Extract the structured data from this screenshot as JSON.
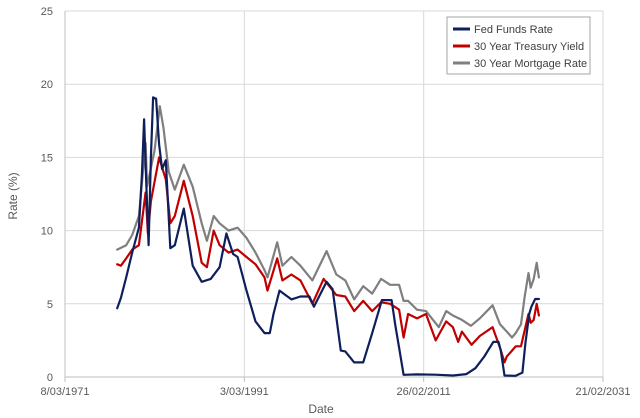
{
  "chart_data": {
    "type": "line",
    "xlabel": "Date",
    "ylabel": "Rate (%)",
    "ylim": [
      0,
      25
    ],
    "yticks": [
      0,
      5,
      10,
      15,
      20,
      25
    ],
    "xlim": [
      "1971-03-08",
      "2031-02-21"
    ],
    "xtick_labels": [
      "8/03/1971",
      "3/03/1991",
      "26/02/2011",
      "21/02/2031"
    ],
    "grid": "vertical and horizontal",
    "legend_position": "top-right",
    "series": [
      {
        "name": "30 Year Mortgage Rate",
        "color": "#7f7f7f",
        "points": [
          [
            "1977-01",
            8.7
          ],
          [
            "1978-01",
            9.0
          ],
          [
            "1978-09",
            9.7
          ],
          [
            "1979-06",
            11.0
          ],
          [
            "1980-03",
            16.0
          ],
          [
            "1980-05",
            13.0
          ],
          [
            "1980-09",
            14.0
          ],
          [
            "1981-03",
            15.5
          ],
          [
            "1981-10",
            18.5
          ],
          [
            "1982-03",
            17.0
          ],
          [
            "1982-10",
            14.0
          ],
          [
            "1983-06",
            12.8
          ],
          [
            "1984-06",
            14.5
          ],
          [
            "1985-06",
            13.0
          ],
          [
            "1986-06",
            10.5
          ],
          [
            "1987-01",
            9.3
          ],
          [
            "1987-10",
            11.0
          ],
          [
            "1988-06",
            10.5
          ],
          [
            "1989-06",
            10.0
          ],
          [
            "1990-06",
            10.2
          ],
          [
            "1991-06",
            9.5
          ],
          [
            "1992-06",
            8.5
          ],
          [
            "1993-06",
            7.3
          ],
          [
            "1993-10",
            6.8
          ],
          [
            "1994-11",
            9.2
          ],
          [
            "1995-06",
            7.6
          ],
          [
            "1996-06",
            8.2
          ],
          [
            "1997-06",
            7.6
          ],
          [
            "1998-10",
            6.6
          ],
          [
            "2000-05",
            8.6
          ],
          [
            "2001-06",
            7.0
          ],
          [
            "2002-06",
            6.6
          ],
          [
            "2003-06",
            5.3
          ],
          [
            "2004-06",
            6.2
          ],
          [
            "2005-06",
            5.7
          ],
          [
            "2006-06",
            6.7
          ],
          [
            "2007-06",
            6.3
          ],
          [
            "2008-06",
            6.3
          ],
          [
            "2008-12",
            5.2
          ],
          [
            "2009-06",
            5.2
          ],
          [
            "2010-06",
            4.6
          ],
          [
            "2011-06",
            4.5
          ],
          [
            "2012-11",
            3.4
          ],
          [
            "2013-09",
            4.5
          ],
          [
            "2014-06",
            4.2
          ],
          [
            "2015-06",
            3.9
          ],
          [
            "2016-06",
            3.5
          ],
          [
            "2017-06",
            4.0
          ],
          [
            "2018-11",
            4.9
          ],
          [
            "2019-09",
            3.6
          ],
          [
            "2020-06",
            3.1
          ],
          [
            "2021-01",
            2.7
          ],
          [
            "2021-06",
            3.0
          ],
          [
            "2022-01",
            3.6
          ],
          [
            "2022-06",
            5.5
          ],
          [
            "2022-11",
            7.1
          ],
          [
            "2023-02",
            6.1
          ],
          [
            "2023-06",
            6.7
          ],
          [
            "2023-10",
            7.8
          ],
          [
            "2024-01",
            6.8
          ]
        ]
      },
      {
        "name": "30 Year Treasury Yield",
        "color": "#c00000",
        "points": [
          [
            "1977-01",
            7.7
          ],
          [
            "1977-06",
            7.6
          ],
          [
            "1978-01",
            8.1
          ],
          [
            "1978-09",
            8.7
          ],
          [
            "1979-06",
            9.0
          ],
          [
            "1980-03",
            12.6
          ],
          [
            "1980-06",
            9.8
          ],
          [
            "1980-10",
            12.0
          ],
          [
            "1981-09",
            15.0
          ],
          [
            "1982-06",
            13.5
          ],
          [
            "1982-12",
            10.5
          ],
          [
            "1983-06",
            11.0
          ],
          [
            "1984-06",
            13.4
          ],
          [
            "1985-06",
            11.0
          ],
          [
            "1986-06",
            7.8
          ],
          [
            "1987-01",
            7.5
          ],
          [
            "1987-10",
            10.0
          ],
          [
            "1988-06",
            9.0
          ],
          [
            "1989-06",
            8.5
          ],
          [
            "1990-06",
            8.7
          ],
          [
            "1991-06",
            8.2
          ],
          [
            "1992-06",
            7.7
          ],
          [
            "1993-06",
            6.8
          ],
          [
            "1993-10",
            5.9
          ],
          [
            "1994-11",
            8.1
          ],
          [
            "1995-06",
            6.6
          ],
          [
            "1996-06",
            7.0
          ],
          [
            "1997-06",
            6.6
          ],
          [
            "1998-10",
            5.0
          ],
          [
            "2000-01",
            6.7
          ],
          [
            "2001-06",
            5.6
          ],
          [
            "2002-06",
            5.5
          ],
          [
            "2003-06",
            4.5
          ],
          [
            "2004-06",
            5.2
          ],
          [
            "2005-06",
            4.5
          ],
          [
            "2006-06",
            5.1
          ],
          [
            "2007-06",
            5.0
          ],
          [
            "2008-06",
            4.6
          ],
          [
            "2008-12",
            2.7
          ],
          [
            "2009-06",
            4.3
          ],
          [
            "2010-06",
            4.0
          ],
          [
            "2011-06",
            4.3
          ],
          [
            "2012-07",
            2.5
          ],
          [
            "2013-09",
            3.8
          ],
          [
            "2014-06",
            3.4
          ],
          [
            "2015-01",
            2.4
          ],
          [
            "2015-06",
            3.1
          ],
          [
            "2016-07",
            2.2
          ],
          [
            "2017-06",
            2.8
          ],
          [
            "2018-11",
            3.4
          ],
          [
            "2019-09",
            2.0
          ],
          [
            "2020-03",
            1.0
          ],
          [
            "2020-06",
            1.4
          ],
          [
            "2021-01",
            1.8
          ],
          [
            "2021-06",
            2.1
          ],
          [
            "2022-01",
            2.1
          ],
          [
            "2022-06",
            3.2
          ],
          [
            "2022-11",
            4.3
          ],
          [
            "2023-02",
            3.7
          ],
          [
            "2023-06",
            3.9
          ],
          [
            "2023-10",
            5.0
          ],
          [
            "2024-01",
            4.2
          ]
        ]
      },
      {
        "name": "Fed Funds Rate",
        "color": "#0f1f5c",
        "points": [
          [
            "1977-01",
            4.7
          ],
          [
            "1977-06",
            5.4
          ],
          [
            "1978-01",
            6.8
          ],
          [
            "1978-09",
            8.5
          ],
          [
            "1979-06",
            10.2
          ],
          [
            "1979-10",
            13.8
          ],
          [
            "1980-01",
            17.6
          ],
          [
            "1980-04",
            13.0
          ],
          [
            "1980-07",
            9.0
          ],
          [
            "1980-10",
            15.0
          ],
          [
            "1981-01",
            19.1
          ],
          [
            "1981-05",
            19.0
          ],
          [
            "1981-09",
            15.9
          ],
          [
            "1982-01",
            14.2
          ],
          [
            "1982-06",
            14.8
          ],
          [
            "1982-12",
            8.8
          ],
          [
            "1983-06",
            9.0
          ],
          [
            "1984-06",
            11.5
          ],
          [
            "1985-06",
            7.6
          ],
          [
            "1986-06",
            6.5
          ],
          [
            "1987-06",
            6.7
          ],
          [
            "1988-06",
            7.5
          ],
          [
            "1989-03",
            9.8
          ],
          [
            "1989-12",
            8.4
          ],
          [
            "1990-06",
            8.2
          ],
          [
            "1991-06",
            5.9
          ],
          [
            "1992-06",
            3.8
          ],
          [
            "1993-06",
            3.0
          ],
          [
            "1994-01",
            3.0
          ],
          [
            "1994-06",
            4.3
          ],
          [
            "1995-02",
            5.9
          ],
          [
            "1996-06",
            5.3
          ],
          [
            "1997-06",
            5.5
          ],
          [
            "1998-06",
            5.5
          ],
          [
            "1998-12",
            4.8
          ],
          [
            "2000-05",
            6.5
          ],
          [
            "2001-01",
            6.0
          ],
          [
            "2001-12",
            1.8
          ],
          [
            "2002-06",
            1.75
          ],
          [
            "2003-06",
            1.0
          ],
          [
            "2004-06",
            1.0
          ],
          [
            "2005-06",
            3.0
          ],
          [
            "2006-07",
            5.25
          ],
          [
            "2007-08",
            5.25
          ],
          [
            "2008-01",
            3.5
          ],
          [
            "2008-06",
            2.0
          ],
          [
            "2008-12",
            0.15
          ],
          [
            "2010-06",
            0.18
          ],
          [
            "2012-06",
            0.16
          ],
          [
            "2014-06",
            0.1
          ],
          [
            "2015-12",
            0.2
          ],
          [
            "2016-12",
            0.6
          ],
          [
            "2017-12",
            1.4
          ],
          [
            "2018-12",
            2.4
          ],
          [
            "2019-07",
            2.4
          ],
          [
            "2019-10",
            1.8
          ],
          [
            "2020-03",
            0.1
          ],
          [
            "2021-06",
            0.08
          ],
          [
            "2022-03",
            0.3
          ],
          [
            "2022-07",
            2.3
          ],
          [
            "2022-12",
            4.3
          ],
          [
            "2023-03",
            4.8
          ],
          [
            "2023-08",
            5.33
          ],
          [
            "2024-01",
            5.33
          ]
        ]
      }
    ],
    "legend_order": [
      "Fed Funds Rate",
      "30 Year Treasury Yield",
      "30 Year Mortgage Rate"
    ]
  }
}
